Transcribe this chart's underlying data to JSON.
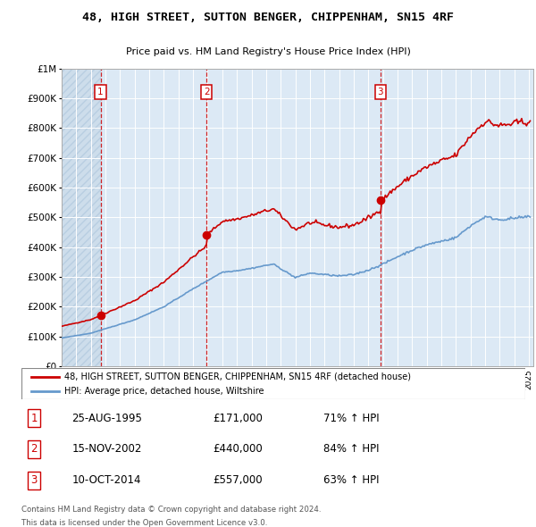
{
  "title": "48, HIGH STREET, SUTTON BENGER, CHIPPENHAM, SN15 4RF",
  "subtitle": "Price paid vs. HM Land Registry's House Price Index (HPI)",
  "sale_prices": [
    171000,
    440000,
    557000
  ],
  "sale_labels": [
    "1",
    "2",
    "3"
  ],
  "sale_info": [
    "25-AUG-1995",
    "15-NOV-2002",
    "10-OCT-2014"
  ],
  "sale_amounts": [
    "£171,000",
    "£440,000",
    "£557,000"
  ],
  "sale_hpi": [
    "71% ↑ HPI",
    "84% ↑ HPI",
    "63% ↑ HPI"
  ],
  "property_label": "48, HIGH STREET, SUTTON BENGER, CHIPPENHAM, SN15 4RF (detached house)",
  "hpi_label": "HPI: Average price, detached house, Wiltshire",
  "footer1": "Contains HM Land Registry data © Crown copyright and database right 2024.",
  "footer2": "This data is licensed under the Open Government Licence v3.0.",
  "price_line_color": "#cc0000",
  "hpi_line_color": "#6699cc",
  "vline_color": "#cc0000",
  "yticks": [
    0,
    100000,
    200000,
    300000,
    400000,
    500000,
    600000,
    700000,
    800000,
    900000,
    1000000
  ],
  "ytick_labels": [
    "£0",
    "£100K",
    "£200K",
    "£300K",
    "£400K",
    "£500K",
    "£600K",
    "£700K",
    "£800K",
    "£900K",
    "£1M"
  ],
  "background_color": "#ffffff",
  "plot_bg_color": "#dce9f5",
  "hatch_color": "#c8d8e8"
}
